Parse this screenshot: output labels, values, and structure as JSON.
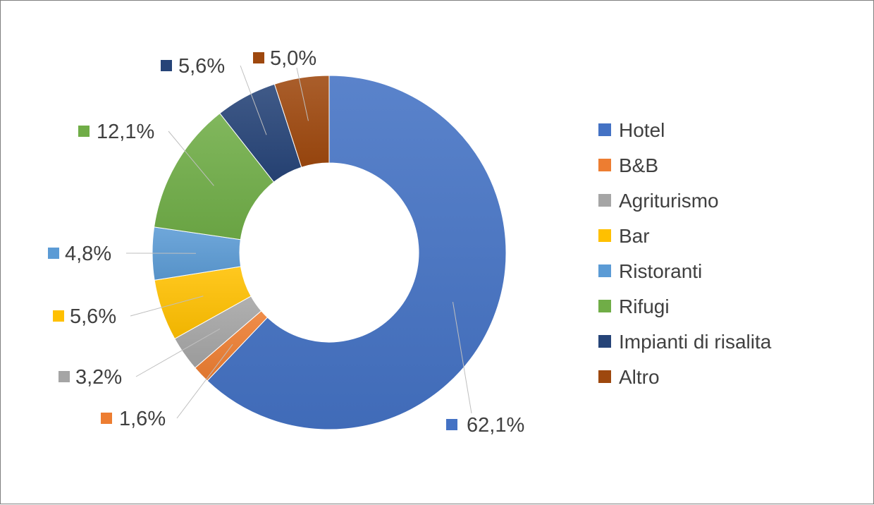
{
  "chart_data": {
    "type": "donut",
    "title": "",
    "categories": [
      "Hotel",
      "B&B",
      "Agriturismo",
      "Bar",
      "Ristoranti",
      "Rifugi",
      "Impianti di risalita",
      "Altro"
    ],
    "values": [
      62.1,
      1.6,
      3.2,
      5.6,
      4.8,
      12.1,
      5.6,
      5.0
    ],
    "data_labels": [
      "62,1%",
      "1,6%",
      "3,2%",
      "5,6%",
      "4,8%",
      "12,1%",
      "5,6%",
      "5,0%"
    ],
    "colors": [
      "#4472C4",
      "#ED7D31",
      "#A5A5A5",
      "#FFC000",
      "#5B9BD5",
      "#70AD47",
      "#264478",
      "#9E480E"
    ],
    "unit": "%",
    "legend_position": "right"
  }
}
